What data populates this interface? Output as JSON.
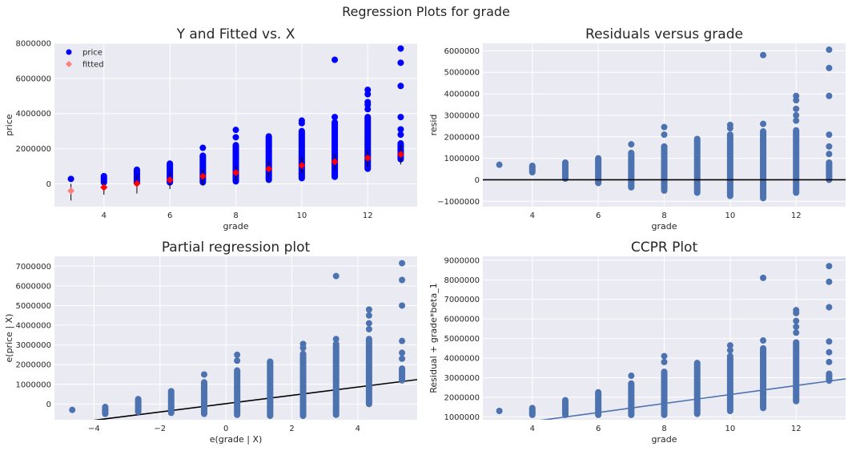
{
  "figure": {
    "title": "Regression Plots for grade"
  },
  "colors": {
    "background": "#EAEAF2",
    "grid": "#FFFFFF",
    "price": "#0000FF",
    "fitted": "#FF0000",
    "fitted_legend": "#FF7F7F",
    "points": "#4C72B0",
    "line_black": "#000000",
    "line_blue": "#4C72B0"
  },
  "chart_data": [
    {
      "type": "scatter",
      "title": "Y and Fitted vs. X",
      "xlabel": "grade",
      "ylabel": "price",
      "xlim": [
        2.5,
        13.5
      ],
      "ylim": [
        -1300000,
        8000000
      ],
      "xticks": [
        4,
        6,
        8,
        10,
        12
      ],
      "yticks": [
        0,
        2000000,
        4000000,
        6000000,
        8000000
      ],
      "legend": {
        "position": "top-left",
        "entries": [
          "price",
          "fitted"
        ]
      },
      "series": [
        {
          "name": "price",
          "marker": "circle",
          "points": [
            {
              "x": 3,
              "min": 280000,
              "max": 280000,
              "extra": []
            },
            {
              "x": 4,
              "min": 80000,
              "max": 440000,
              "extra": []
            },
            {
              "x": 5,
              "min": 80000,
              "max": 800000,
              "extra": []
            },
            {
              "x": 6,
              "min": 80000,
              "max": 1150000,
              "extra": []
            },
            {
              "x": 7,
              "min": 90000,
              "max": 1600000,
              "extra": [
                2050000
              ]
            },
            {
              "x": 8,
              "min": 140000,
              "max": 2200000,
              "extra": [
                2650000,
                3070000
              ]
            },
            {
              "x": 9,
              "min": 230000,
              "max": 2700000,
              "extra": []
            },
            {
              "x": 10,
              "min": 320000,
              "max": 3000000,
              "extra": [
                3450000,
                3600000
              ]
            },
            {
              "x": 11,
              "min": 400000,
              "max": 3500000,
              "extra": [
                3800000,
                7060000
              ]
            },
            {
              "x": 12,
              "min": 860000,
              "max": 3800000,
              "extra": [
                4250000,
                4500000,
                4650000,
                5100000,
                5350000
              ]
            },
            {
              "x": 13,
              "min": 1400000,
              "max": 2300000,
              "extra": [
                2800000,
                3100000,
                3800000,
                5570000,
                6890000,
                7700000
              ]
            }
          ]
        },
        {
          "name": "fitted",
          "marker": "diamond",
          "points": [
            {
              "x": 3,
              "y": -400000,
              "lo": -950000,
              "hi": 0
            },
            {
              "x": 4,
              "y": -200000,
              "lo": -620000,
              "hi": 200000
            },
            {
              "x": 5,
              "y": 10000,
              "lo": -550000,
              "hi": 500000
            },
            {
              "x": 6,
              "y": 220000,
              "lo": -300000,
              "hi": 700000
            },
            {
              "x": 7,
              "y": 430000,
              "lo": -100000,
              "hi": 800000
            },
            {
              "x": 8,
              "y": 640000,
              "lo": 200000,
              "hi": 1000000
            },
            {
              "x": 9,
              "y": 850000,
              "lo": 400000,
              "hi": 1300000
            },
            {
              "x": 10,
              "y": 1050000,
              "lo": 600000,
              "hi": 1500000
            },
            {
              "x": 11,
              "y": 1260000,
              "lo": 800000,
              "hi": 1700000
            },
            {
              "x": 12,
              "y": 1470000,
              "lo": 1000000,
              "hi": 1900000
            },
            {
              "x": 13,
              "y": 1680000,
              "lo": 1100000,
              "hi": 2200000
            }
          ]
        }
      ]
    },
    {
      "type": "scatter",
      "title": "Residuals versus grade",
      "xlabel": "grade",
      "ylabel": "resid",
      "xlim": [
        2.5,
        13.5
      ],
      "ylim": [
        -1250000,
        6350000
      ],
      "xticks": [
        4,
        6,
        8,
        10,
        12
      ],
      "yticks": [
        -1000000,
        0,
        1000000,
        2000000,
        3000000,
        4000000,
        5000000,
        6000000
      ],
      "hline": 0,
      "series": [
        {
          "name": "",
          "points": [
            {
              "x": 3,
              "min": 700000,
              "max": 700000,
              "extra": []
            },
            {
              "x": 4,
              "min": 350000,
              "max": 650000,
              "extra": []
            },
            {
              "x": 5,
              "min": 50000,
              "max": 800000,
              "extra": []
            },
            {
              "x": 6,
              "min": -150000,
              "max": 1000000,
              "extra": []
            },
            {
              "x": 7,
              "min": -350000,
              "max": 1250000,
              "extra": [
                1650000
              ]
            },
            {
              "x": 8,
              "min": -500000,
              "max": 1550000,
              "extra": [
                2100000,
                2450000
              ]
            },
            {
              "x": 9,
              "min": -600000,
              "max": 1900000,
              "extra": []
            },
            {
              "x": 10,
              "min": -750000,
              "max": 2100000,
              "extra": [
                2400000,
                2550000
              ]
            },
            {
              "x": 11,
              "min": -850000,
              "max": 2250000,
              "extra": [
                2600000,
                5800000
              ]
            },
            {
              "x": 12,
              "min": -600000,
              "max": 2300000,
              "extra": [
                2750000,
                3000000,
                3300000,
                3700000,
                3900000
              ]
            },
            {
              "x": 13,
              "min": 0,
              "max": 800000,
              "extra": [
                1200000,
                1550000,
                2100000,
                3900000,
                5200000,
                6050000
              ]
            }
          ]
        }
      ]
    },
    {
      "type": "scatter",
      "title": "Partial regression plot",
      "xlabel": "e(grade | X)",
      "ylabel": "e(price | X)",
      "xlim": [
        -5.2,
        5.8
      ],
      "ylim": [
        -800000,
        7500000
      ],
      "xticks": [
        -4,
        -2,
        0,
        2,
        4
      ],
      "yticks": [
        0,
        1000000,
        2000000,
        3000000,
        4000000,
        5000000,
        6000000,
        7000000
      ],
      "line": {
        "x": [
          -5.2,
          5.8
        ],
        "y": [
          -1080000,
          1240000
        ]
      },
      "series": [
        {
          "name": "",
          "points": [
            {
              "x": -4.66,
              "min": -300000,
              "max": -300000,
              "extra": []
            },
            {
              "x": -3.66,
              "min": -500000,
              "max": -150000,
              "extra": []
            },
            {
              "x": -2.66,
              "min": -400000,
              "max": 250000,
              "extra": []
            },
            {
              "x": -1.66,
              "min": -450000,
              "max": 650000,
              "extra": []
            },
            {
              "x": -0.66,
              "min": -500000,
              "max": 1100000,
              "extra": [
                1500000
              ]
            },
            {
              "x": 0.34,
              "min": -550000,
              "max": 1700000,
              "extra": [
                2200000,
                2500000
              ]
            },
            {
              "x": 1.34,
              "min": -600000,
              "max": 2150000,
              "extra": []
            },
            {
              "x": 2.34,
              "min": -600000,
              "max": 2550000,
              "extra": [
                2850000,
                3050000
              ]
            },
            {
              "x": 3.34,
              "min": -550000,
              "max": 3050000,
              "extra": [
                3300000,
                6500000
              ]
            },
            {
              "x": 4.34,
              "min": 0,
              "max": 3300000,
              "extra": [
                3800000,
                4100000,
                4500000,
                4800000
              ]
            },
            {
              "x": 5.34,
              "min": 1200000,
              "max": 1800000,
              "extra": [
                2300000,
                2600000,
                3200000,
                5000000,
                6300000,
                7150000
              ]
            }
          ]
        }
      ]
    },
    {
      "type": "scatter",
      "title": "CCPR Plot",
      "xlabel": "grade",
      "ylabel": "Residual + grade*beta_1",
      "xlim": [
        2.5,
        13.5
      ],
      "ylim": [
        850000,
        9200000
      ],
      "xticks": [
        4,
        6,
        8,
        10,
        12
      ],
      "yticks": [
        1000000,
        2000000,
        3000000,
        4000000,
        5000000,
        6000000,
        7000000,
        8000000,
        9000000
      ],
      "line": {
        "x": [
          2.5,
          13.5
        ],
        "y": [
          420000,
          2940000
        ]
      },
      "series": [
        {
          "name": "",
          "points": [
            {
              "x": 3,
              "min": 1300000,
              "max": 1300000,
              "extra": []
            },
            {
              "x": 4,
              "min": 1100000,
              "max": 1450000,
              "extra": []
            },
            {
              "x": 5,
              "min": 1100000,
              "max": 1850000,
              "extra": []
            },
            {
              "x": 6,
              "min": 1100000,
              "max": 2250000,
              "extra": []
            },
            {
              "x": 7,
              "min": 1100000,
              "max": 2700000,
              "extra": [
                3100000
              ]
            },
            {
              "x": 8,
              "min": 1100000,
              "max": 3300000,
              "extra": [
                3800000,
                4100000
              ]
            },
            {
              "x": 9,
              "min": 1150000,
              "max": 3750000,
              "extra": []
            },
            {
              "x": 10,
              "min": 1300000,
              "max": 4100000,
              "extra": [
                4400000,
                4650000
              ]
            },
            {
              "x": 11,
              "min": 1450000,
              "max": 4500000,
              "extra": [
                4900000,
                8100000
              ]
            },
            {
              "x": 12,
              "min": 1800000,
              "max": 4800000,
              "extra": [
                5300000,
                5600000,
                5900000,
                6300000,
                6450000
              ]
            },
            {
              "x": 13,
              "min": 2850000,
              "max": 3200000,
              "extra": [
                3800000,
                4300000,
                4850000,
                6600000,
                7900000,
                8700000
              ]
            }
          ]
        }
      ]
    }
  ]
}
